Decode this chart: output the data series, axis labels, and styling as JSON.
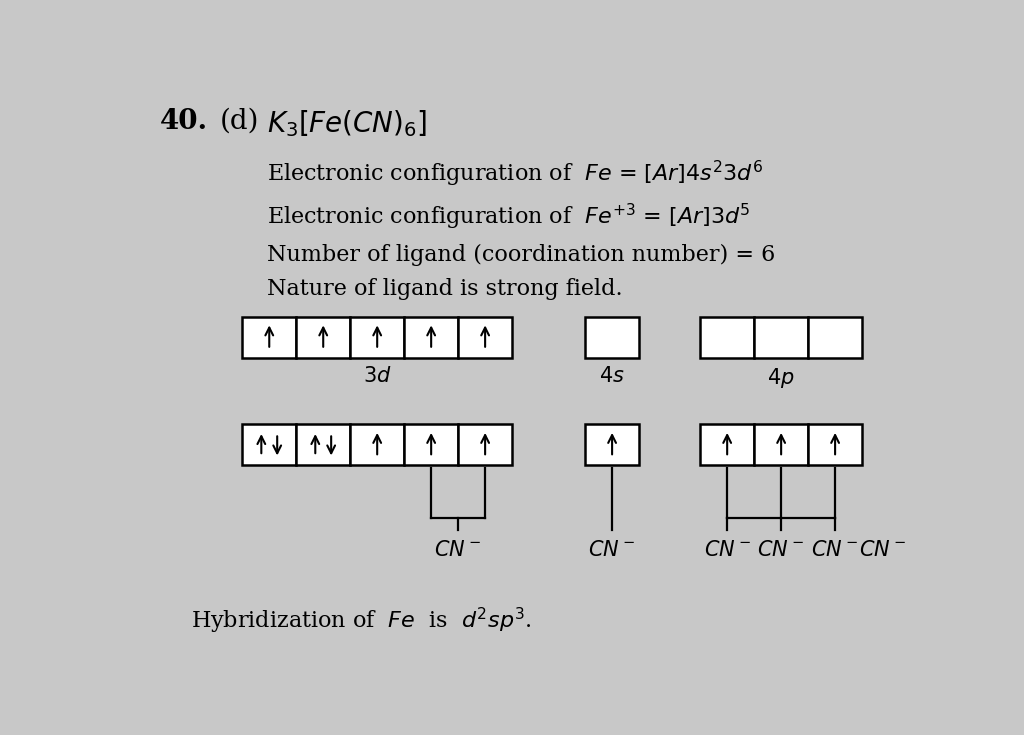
{
  "bg_color": "#c8c8c8",
  "title_num": "40.",
  "title_label": "(d)",
  "title_formula": "$K_3[Fe(CN)_6]$",
  "line1": "Electronic configuration of  $\\mathit{Fe}\\,{=}\\,[Ar]4s^23d^6$",
  "line2": "Electronic configuration of  $\\mathit{Fe}^{+3}\\,{=}\\,[Ar]3d^5$",
  "line3": "Number of ligand (coordination number) = 6",
  "line4": "Nature of ligand is strong field.",
  "bottom_line": "Hybridization of  $\\mathit{Fe}$  is  $d^2sp^3$."
}
